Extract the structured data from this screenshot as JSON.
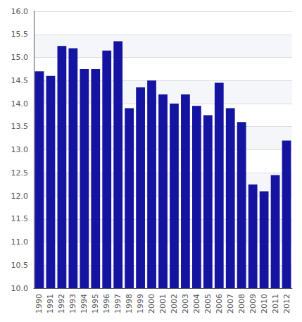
{
  "chart_data": {
    "type": "bar",
    "categories": [
      "1990",
      "1991",
      "1992",
      "1993",
      "1994",
      "1995",
      "1996",
      "1997",
      "1998",
      "1999",
      "2000",
      "2001",
      "2002",
      "2003",
      "2004",
      "2005",
      "2006",
      "2007",
      "2008",
      "2009",
      "2010",
      "2011",
      "2012"
    ],
    "values": [
      14.7,
      14.6,
      15.25,
      15.2,
      14.75,
      14.75,
      15.15,
      15.35,
      13.9,
      14.35,
      14.5,
      14.2,
      14.0,
      14.2,
      13.95,
      13.75,
      14.45,
      13.9,
      13.6,
      12.25,
      12.1,
      12.45,
      13.2
    ],
    "color": "#1414a0",
    "ylim": [
      10.0,
      16.0
    ],
    "yticks": [
      {
        "value": 10.0,
        "label": "10.0"
      },
      {
        "value": 10.5,
        "label": "10.5"
      },
      {
        "value": 11.0,
        "label": "11.0"
      },
      {
        "value": 11.5,
        "label": "11.5"
      },
      {
        "value": 12.0,
        "label": "12.0"
      },
      {
        "value": 12.5,
        "label": "12.5"
      },
      {
        "value": 13.0,
        "label": "13.0"
      },
      {
        "value": 13.5,
        "label": "13.5"
      },
      {
        "value": 14.0,
        "label": "14.0"
      },
      {
        "value": 14.5,
        "label": "14.5"
      },
      {
        "value": 15.0,
        "label": "15.0"
      },
      {
        "value": 15.5,
        "label": "15.5"
      },
      {
        "value": 16.0,
        "label": "16.0"
      }
    ],
    "grid": true
  }
}
